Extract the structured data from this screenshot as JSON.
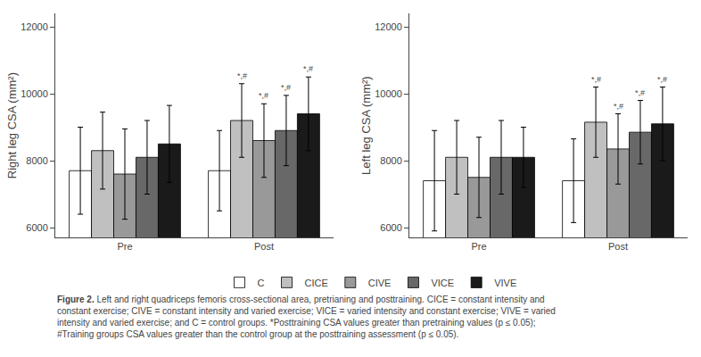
{
  "chart_data": [
    {
      "type": "bar",
      "categories": [
        "Pre",
        "Post"
      ],
      "ylabel": "Right leg CSA (mm²)",
      "ylim": [
        5700,
        12400
      ],
      "yticks": [
        6000,
        8000,
        10000,
        12000
      ],
      "grid": false,
      "legend": "bottom",
      "series": [
        {
          "name": "C",
          "color": "#ffffff",
          "values": [
            7700,
            7700
          ],
          "errors": [
            1300,
            1200
          ]
        },
        {
          "name": "CICE",
          "color": "#c0c0c0",
          "values": [
            8300,
            9200
          ],
          "errors": [
            1150,
            1100
          ]
        },
        {
          "name": "CIVE",
          "color": "#999999",
          "values": [
            7600,
            8600
          ],
          "errors": [
            1350,
            1100
          ]
        },
        {
          "name": "VICE",
          "color": "#686868",
          "values": [
            8100,
            8900
          ],
          "errors": [
            1100,
            1050
          ]
        },
        {
          "name": "VIVE",
          "color": "#1a1a1a",
          "values": [
            8500,
            9400
          ],
          "errors": [
            1150,
            1100
          ]
        }
      ],
      "annotations": [
        {
          "series": "CICE",
          "category": "Post",
          "text": "*,#"
        },
        {
          "series": "CIVE",
          "category": "Post",
          "text": "*,#"
        },
        {
          "series": "VICE",
          "category": "Post",
          "text": "*,#"
        },
        {
          "series": "VIVE",
          "category": "Post",
          "text": "*,#"
        }
      ]
    },
    {
      "type": "bar",
      "categories": [
        "Pre",
        "Post"
      ],
      "ylabel": "Left leg CSA (mm²)",
      "ylim": [
        5700,
        12400
      ],
      "yticks": [
        6000,
        8000,
        10000,
        12000
      ],
      "grid": false,
      "series": [
        {
          "name": "C",
          "color": "#ffffff",
          "values": [
            7400,
            7400
          ],
          "errors": [
            1500,
            1250
          ]
        },
        {
          "name": "CICE",
          "color": "#c0c0c0",
          "values": [
            8100,
            9150
          ],
          "errors": [
            1100,
            1050
          ]
        },
        {
          "name": "CIVE",
          "color": "#999999",
          "values": [
            7500,
            8350
          ],
          "errors": [
            1200,
            1050
          ]
        },
        {
          "name": "VICE",
          "color": "#686868",
          "values": [
            8100,
            8850
          ],
          "errors": [
            1100,
            950
          ]
        },
        {
          "name": "VIVE",
          "color": "#1a1a1a",
          "values": [
            8100,
            9100
          ],
          "errors": [
            900,
            1100
          ]
        }
      ],
      "annotations": [
        {
          "series": "CICE",
          "category": "Post",
          "text": "*,#"
        },
        {
          "series": "CIVE",
          "category": "Post",
          "text": "*,#"
        },
        {
          "series": "VICE",
          "category": "Post",
          "text": "*,#"
        },
        {
          "series": "VIVE",
          "category": "Post",
          "text": "*,#"
        }
      ]
    }
  ],
  "caption": {
    "bold": "Figure 2.",
    "text": " Left and right quadriceps femoris cross-sectional area, pretrianing and posttraining. CICE = constant intensity and constant exercise; CIVE = constant intensity and varied exercise; VICE = varied intensity and constant exercise; VIVE = varied intensity and varied exercise; and C = control groups. *Posttraining CSA values greater than pretraining values (p ≤ 0.05); #Training groups CSA values greater than the control group at the posttraining assessment (p ≤ 0.05)."
  }
}
